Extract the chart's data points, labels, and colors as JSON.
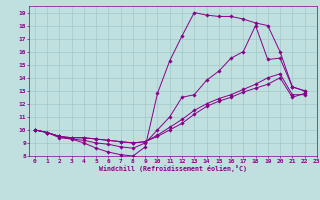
{
  "background_color": "#c0e0e0",
  "line_color": "#880088",
  "xlabel": "Windchill (Refroidissement éolien,°C)",
  "xlim": [
    -0.5,
    23
  ],
  "ylim": [
    8,
    19.5
  ],
  "xticks": [
    0,
    1,
    2,
    3,
    4,
    5,
    6,
    7,
    8,
    9,
    10,
    11,
    12,
    13,
    14,
    15,
    16,
    17,
    18,
    19,
    20,
    21,
    22,
    23
  ],
  "yticks": [
    8,
    9,
    10,
    11,
    12,
    13,
    14,
    15,
    16,
    17,
    18,
    19
  ],
  "grid_color": "#a0c8c8",
  "series": [
    {
      "x": [
        0,
        1,
        2,
        3,
        4,
        5,
        6,
        7,
        8,
        9,
        10,
        11,
        12,
        13,
        14,
        15,
        16,
        17,
        18,
        19,
        20,
        21,
        22
      ],
      "y": [
        10,
        9.8,
        9.5,
        9.3,
        9.0,
        8.6,
        8.3,
        8.1,
        8.0,
        8.7,
        12.8,
        15.3,
        17.2,
        19.0,
        18.8,
        18.7,
        18.7,
        18.5,
        18.2,
        18.0,
        16.0,
        13.3,
        13.0
      ]
    },
    {
      "x": [
        0,
        1,
        2,
        3,
        4,
        5,
        6,
        7,
        8,
        9,
        10,
        11,
        12,
        13,
        14,
        15,
        16,
        17,
        18,
        19,
        20,
        21,
        22
      ],
      "y": [
        10,
        9.8,
        9.4,
        9.3,
        9.2,
        9.0,
        8.9,
        8.7,
        8.6,
        9.0,
        10.0,
        11.0,
        12.5,
        12.7,
        13.8,
        14.5,
        15.5,
        16.0,
        18.0,
        15.4,
        15.5,
        13.3,
        13.0
      ]
    },
    {
      "x": [
        0,
        1,
        2,
        3,
        4,
        5,
        6,
        7,
        8,
        9,
        10,
        11,
        12,
        13,
        14,
        15,
        16,
        17,
        18,
        19,
        20,
        21,
        22
      ],
      "y": [
        10,
        9.8,
        9.5,
        9.4,
        9.4,
        9.3,
        9.2,
        9.1,
        9.0,
        9.1,
        9.5,
        10.0,
        10.5,
        11.2,
        11.8,
        12.2,
        12.5,
        12.9,
        13.2,
        13.5,
        14.0,
        12.5,
        12.8
      ]
    },
    {
      "x": [
        0,
        1,
        2,
        3,
        4,
        5,
        6,
        7,
        8,
        9,
        10,
        11,
        12,
        13,
        14,
        15,
        16,
        17,
        18,
        19,
        20,
        21,
        22
      ],
      "y": [
        10,
        9.8,
        9.5,
        9.4,
        9.4,
        9.3,
        9.2,
        9.1,
        9.0,
        9.1,
        9.6,
        10.2,
        10.8,
        11.5,
        12.0,
        12.4,
        12.7,
        13.1,
        13.5,
        14.0,
        14.3,
        12.7,
        12.7
      ]
    }
  ]
}
